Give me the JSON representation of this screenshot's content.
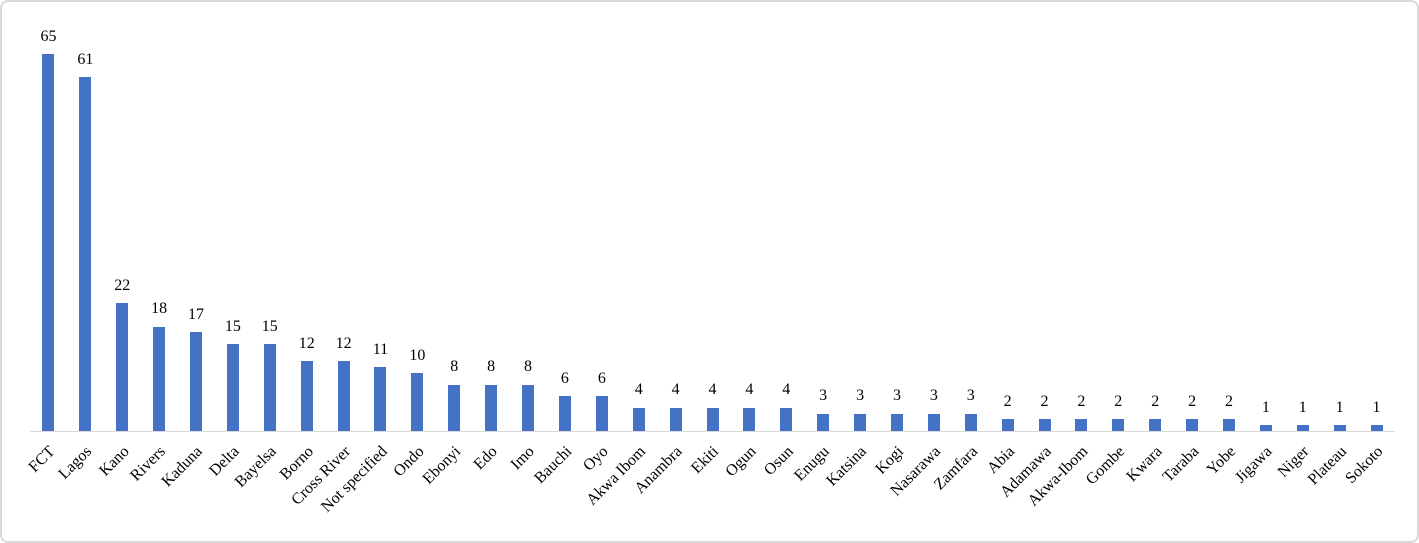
{
  "chart_data": {
    "type": "bar",
    "title": "",
    "xlabel": "",
    "ylabel": "",
    "categories": [
      "FCT",
      "Lagos",
      "Kano",
      "Rivers",
      "Kaduna",
      "Delta",
      "Bayelsa",
      "Borno",
      "Cross River",
      "Not specified",
      "Ondo",
      "Ebonyi",
      "Edo",
      "Imo",
      "Bauchi",
      "Oyo",
      "Akwa Ibom",
      "Anambra",
      "Ekiti",
      "Ogun",
      "Osun",
      "Enugu",
      "Katsina",
      "Kogi",
      "Nasarawa",
      "Zamfara",
      "Abia",
      "Adamawa",
      "Akwa-Ibom",
      "Gombe",
      "Kwara",
      "Taraba",
      "Yobe",
      "Jigawa",
      "Niger",
      "Plateau",
      "Sokoto"
    ],
    "values": [
      65,
      61,
      22,
      18,
      17,
      15,
      15,
      12,
      12,
      11,
      10,
      8,
      8,
      8,
      6,
      6,
      4,
      4,
      4,
      4,
      4,
      3,
      3,
      3,
      3,
      3,
      2,
      2,
      2,
      2,
      2,
      2,
      2,
      1,
      1,
      1,
      1
    ],
    "data_labels_shown": true,
    "gridlines": false,
    "legend": "none",
    "y_axis_visible": false,
    "ylim": [
      0,
      70
    ],
    "x_tick_rotation_deg": 45,
    "colors": {
      "bar": "#4472C4",
      "axis_line": "#d9d9d9",
      "label_text": "#000000",
      "frame_border": "#d9d9d9",
      "background": "#ffffff"
    }
  }
}
